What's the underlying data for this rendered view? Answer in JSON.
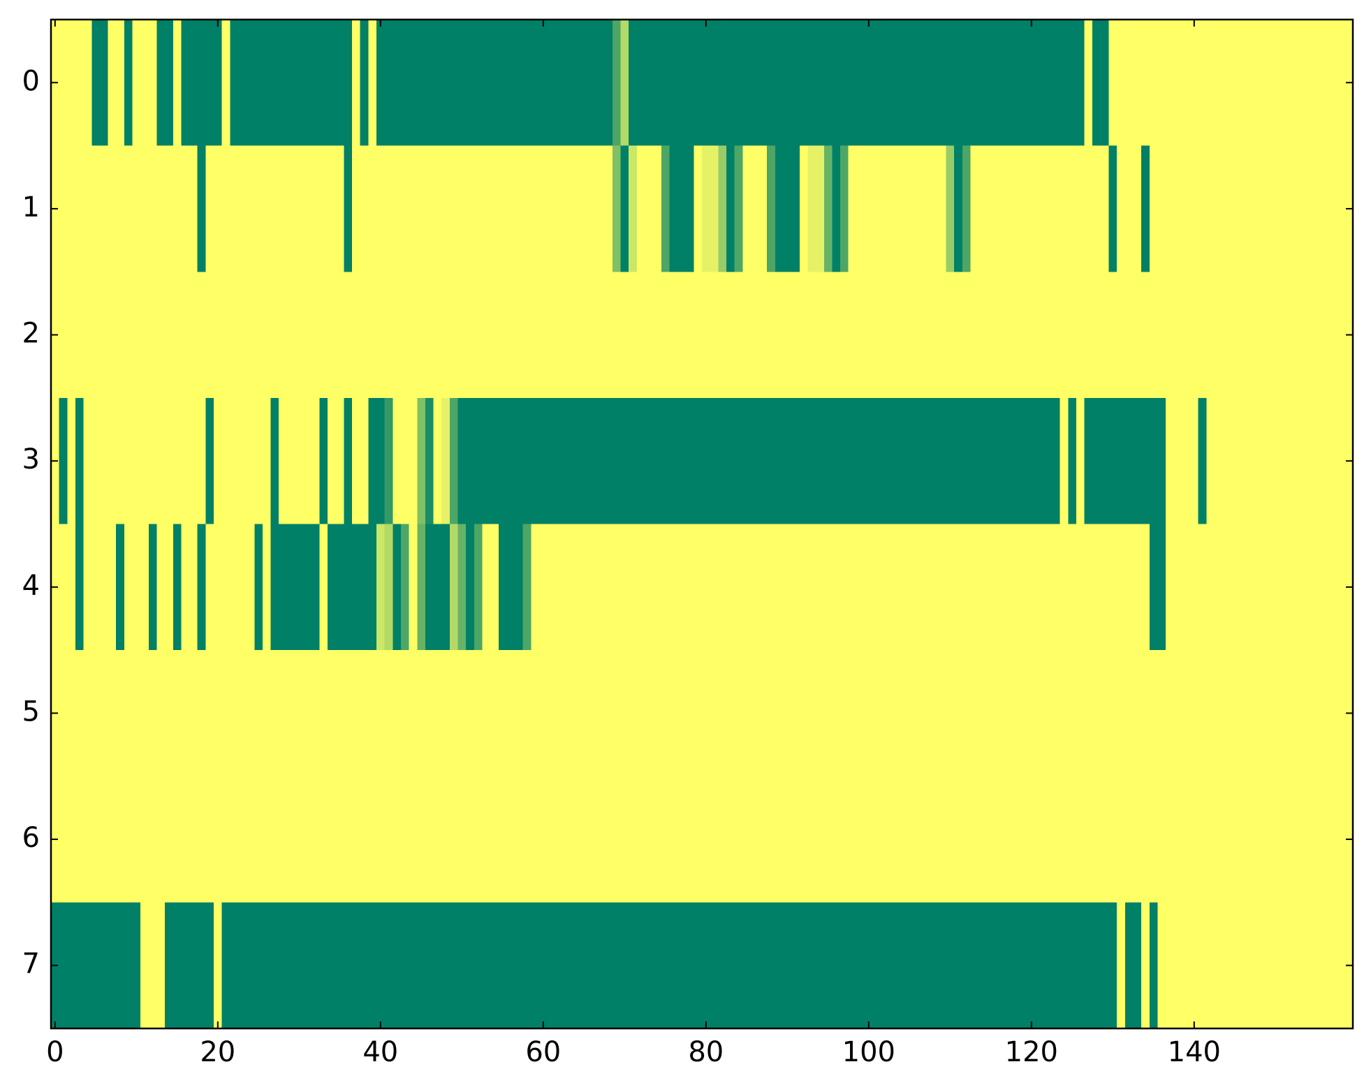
{
  "chart_data": {
    "type": "heatmap",
    "colormap": {
      "low": "#008066",
      "high": "#ffff66"
    },
    "xlim": [
      -0.5,
      159.5
    ],
    "ylim": [
      7.5,
      -0.5
    ],
    "xticks": [
      0,
      20,
      40,
      60,
      80,
      100,
      120,
      140
    ],
    "yticks": [
      0,
      1,
      2,
      3,
      4,
      5,
      6,
      7
    ],
    "values": [
      [
        1,
        1,
        1,
        1,
        1,
        0,
        0,
        1,
        1,
        0,
        1,
        1,
        1,
        0,
        0,
        1,
        0,
        0,
        0,
        0,
        0,
        1,
        0,
        0,
        0,
        0,
        0,
        0,
        0,
        0,
        0,
        0,
        0,
        0,
        0,
        0,
        0,
        1,
        0,
        1,
        0,
        0,
        0,
        0,
        0,
        0,
        0,
        0,
        0,
        0,
        0,
        0,
        0,
        0,
        0,
        0,
        0,
        0,
        0,
        0,
        0,
        0,
        0,
        0,
        0,
        0,
        0,
        0,
        0,
        0.3,
        0.7,
        0,
        0,
        0,
        0,
        0,
        0,
        0,
        0,
        0,
        0,
        0,
        0,
        0,
        0,
        0,
        0,
        0,
        0,
        0,
        0,
        0,
        0,
        0,
        0,
        0,
        0,
        0,
        0,
        0,
        0,
        0,
        0,
        0,
        0,
        0,
        0,
        0,
        0,
        0,
        0,
        0,
        0,
        0,
        0,
        0,
        0,
        0,
        0,
        0,
        0,
        0,
        0,
        0,
        0,
        0,
        0,
        1,
        0,
        0,
        1,
        1,
        1,
        1,
        1,
        1,
        1,
        1,
        1,
        1,
        1,
        1,
        1,
        1,
        1,
        1,
        1,
        1,
        1,
        1,
        1,
        1,
        1,
        1,
        1,
        1,
        1,
        1,
        1,
        1
      ],
      [
        1,
        1,
        1,
        1,
        1,
        1,
        1,
        1,
        1,
        1,
        1,
        1,
        1,
        1,
        1,
        1,
        1,
        1,
        0,
        1,
        1,
        1,
        1,
        1,
        1,
        1,
        1,
        1,
        1,
        1,
        1,
        1,
        1,
        1,
        1,
        1,
        0,
        1,
        1,
        1,
        1,
        1,
        1,
        1,
        1,
        1,
        1,
        1,
        1,
        1,
        1,
        1,
        1,
        1,
        1,
        1,
        1,
        1,
        1,
        1,
        1,
        1,
        1,
        1,
        1,
        1,
        1,
        1,
        1,
        0.5,
        0,
        0.8,
        1,
        1,
        1,
        0.3,
        0,
        0,
        0,
        1,
        0.9,
        0.9,
        0.6,
        0,
        0.3,
        1,
        1,
        1,
        0.3,
        0,
        0,
        0,
        1,
        0.9,
        0.9,
        0.4,
        0,
        0.3,
        1,
        1,
        1,
        1,
        1,
        1,
        1,
        1,
        1,
        1,
        1,
        1,
        0.6,
        0,
        0.3,
        1,
        1,
        1,
        1,
        1,
        1,
        1,
        1,
        1,
        1,
        1,
        1,
        1,
        1,
        1,
        1,
        1,
        0,
        1,
        1,
        1,
        0,
        1,
        1,
        1,
        1,
        1,
        1,
        1,
        1,
        1,
        1,
        1,
        1,
        1,
        1,
        1,
        1,
        1,
        1,
        1,
        1,
        1,
        1,
        1,
        1,
        1
      ],
      [
        1,
        1,
        1,
        1,
        1,
        1,
        1,
        1,
        1,
        1,
        1,
        1,
        1,
        1,
        1,
        1,
        1,
        1,
        1,
        1,
        1,
        1,
        1,
        1,
        1,
        1,
        1,
        1,
        1,
        1,
        1,
        1,
        1,
        1,
        1,
        1,
        1,
        1,
        1,
        1,
        1,
        1,
        1,
        1,
        1,
        1,
        1,
        1,
        1,
        1,
        1,
        1,
        1,
        1,
        1,
        1,
        1,
        1,
        1,
        1,
        1,
        1,
        1,
        1,
        1,
        1,
        1,
        1,
        1,
        1,
        1,
        1,
        1,
        1,
        1,
        1,
        1,
        1,
        1,
        1,
        1,
        1,
        1,
        1,
        1,
        1,
        1,
        1,
        1,
        1,
        1,
        1,
        1,
        1,
        1,
        1,
        1,
        1,
        1,
        1,
        1,
        1,
        1,
        1,
        1,
        1,
        1,
        1,
        1,
        1,
        1,
        1,
        1,
        1,
        1,
        1,
        1,
        1,
        1,
        1,
        1,
        1,
        1,
        1,
        1,
        1,
        1,
        1,
        1,
        1,
        1,
        1,
        1,
        1,
        1,
        1,
        1,
        1,
        1,
        1,
        1,
        1,
        1,
        1,
        1,
        1,
        1,
        1,
        1,
        1,
        1,
        1,
        1,
        1,
        1,
        1,
        1,
        1,
        1,
        1
      ],
      [
        1,
        0,
        1,
        0,
        1,
        1,
        1,
        1,
        1,
        1,
        1,
        1,
        1,
        1,
        1,
        1,
        1,
        1,
        1,
        0,
        1,
        1,
        1,
        1,
        1,
        1,
        1,
        0,
        1,
        1,
        1,
        1,
        1,
        0,
        1,
        1,
        0,
        1,
        1,
        0,
        0,
        0.2,
        1,
        1,
        1,
        0.5,
        0.1,
        1,
        0.9,
        0.3,
        0,
        0,
        0,
        0,
        0,
        0,
        0,
        0,
        0,
        0,
        0,
        0,
        0,
        0,
        0,
        0,
        0,
        0,
        0,
        0,
        0,
        0,
        0,
        0,
        0,
        0,
        0,
        0,
        0,
        0,
        0,
        0,
        0,
        0,
        0,
        0,
        0,
        0,
        0,
        0,
        0,
        0,
        0,
        0,
        0,
        0,
        0,
        0,
        0,
        0,
        0,
        0,
        0,
        0,
        0,
        0,
        0,
        0,
        0,
        0,
        0,
        0,
        0,
        0,
        0,
        0,
        0,
        0,
        0,
        0,
        0,
        0,
        0,
        0,
        1,
        0,
        1,
        0,
        0,
        0,
        0,
        0,
        0,
        0,
        0,
        0,
        0,
        1,
        1,
        1,
        1,
        0,
        1,
        1,
        1,
        1,
        1,
        1,
        1,
        1,
        1,
        1,
        1,
        1,
        1,
        1,
        1,
        1,
        1,
        1
      ],
      [
        1,
        1,
        1,
        0,
        1,
        1,
        1,
        1,
        0,
        1,
        1,
        1,
        0,
        1,
        1,
        0,
        1,
        1,
        0,
        1,
        1,
        1,
        1,
        1,
        1,
        0,
        1,
        0,
        0,
        0,
        0,
        0,
        0,
        1,
        0,
        0,
        0,
        0,
        0,
        0,
        0.8,
        0.7,
        0,
        0.3,
        1,
        0.4,
        0,
        0,
        0,
        0.7,
        0.4,
        0,
        0.3,
        1,
        1,
        0,
        0,
        0,
        0.3,
        1,
        1,
        1,
        1,
        1,
        1,
        1,
        1,
        1,
        1,
        1,
        1,
        1,
        1,
        1,
        1,
        1,
        1,
        1,
        1,
        1,
        1,
        1,
        1,
        1,
        1,
        1,
        1,
        1,
        1,
        1,
        1,
        1,
        1,
        1,
        1,
        1,
        1,
        1,
        1,
        1,
        1,
        1,
        1,
        1,
        1,
        1,
        1,
        1,
        1,
        1,
        1,
        1,
        1,
        1,
        1,
        1,
        1,
        1,
        1,
        1,
        1,
        1,
        1,
        1,
        1,
        1,
        1,
        1,
        1,
        1,
        1,
        1,
        1,
        1,
        1,
        0,
        0,
        1,
        1,
        1,
        1,
        1,
        1,
        1,
        1,
        1,
        1,
        1,
        1,
        1,
        1,
        1,
        1,
        1,
        1,
        1,
        1,
        1,
        1,
        1
      ],
      [
        1,
        1,
        1,
        1,
        1,
        1,
        1,
        1,
        1,
        1,
        1,
        1,
        1,
        1,
        1,
        1,
        1,
        1,
        1,
        1,
        1,
        1,
        1,
        1,
        1,
        1,
        1,
        1,
        1,
        1,
        1,
        1,
        1,
        1,
        1,
        1,
        1,
        1,
        1,
        1,
        1,
        1,
        1,
        1,
        1,
        1,
        1,
        1,
        1,
        1,
        1,
        1,
        1,
        1,
        1,
        1,
        1,
        1,
        1,
        1,
        1,
        1,
        1,
        1,
        1,
        1,
        1,
        1,
        1,
        1,
        1,
        1,
        1,
        1,
        1,
        1,
        1,
        1,
        1,
        1,
        1,
        1,
        1,
        1,
        1,
        1,
        1,
        1,
        1,
        1,
        1,
        1,
        1,
        1,
        1,
        1,
        1,
        1,
        1,
        1,
        1,
        1,
        1,
        1,
        1,
        1,
        1,
        1,
        1,
        1,
        1,
        1,
        1,
        1,
        1,
        1,
        1,
        1,
        1,
        1,
        1,
        1,
        1,
        1,
        1,
        1,
        1,
        1,
        1,
        1,
        1,
        1,
        1,
        1,
        1,
        1,
        1,
        1,
        1,
        1,
        1,
        1,
        1,
        1,
        1,
        1,
        1,
        1,
        1,
        1,
        1,
        1,
        1,
        1,
        1,
        1,
        1,
        1,
        1,
        1
      ],
      [
        1,
        1,
        1,
        1,
        1,
        1,
        1,
        1,
        1,
        1,
        1,
        1,
        1,
        1,
        1,
        1,
        1,
        1,
        1,
        1,
        1,
        1,
        1,
        1,
        1,
        1,
        1,
        1,
        1,
        1,
        1,
        1,
        1,
        1,
        1,
        1,
        1,
        1,
        1,
        1,
        1,
        1,
        1,
        1,
        1,
        1,
        1,
        1,
        1,
        1,
        1,
        1,
        1,
        1,
        1,
        1,
        1,
        1,
        1,
        1,
        1,
        1,
        1,
        1,
        1,
        1,
        1,
        1,
        1,
        1,
        1,
        1,
        1,
        1,
        1,
        1,
        1,
        1,
        1,
        1,
        1,
        1,
        1,
        1,
        1,
        1,
        1,
        1,
        1,
        1,
        1,
        1,
        1,
        1,
        1,
        1,
        1,
        1,
        1,
        1,
        1,
        1,
        1,
        1,
        1,
        1,
        1,
        1,
        1,
        1,
        1,
        1,
        1,
        1,
        1,
        1,
        1,
        1,
        1,
        1,
        1,
        1,
        1,
        1,
        1,
        1,
        1,
        1,
        1,
        1,
        1,
        1,
        1,
        1,
        1,
        1,
        1,
        1,
        1,
        1,
        1,
        1,
        1,
        1,
        1,
        1,
        1,
        1,
        1,
        1,
        1,
        1,
        1,
        1,
        1,
        1,
        1,
        1,
        1,
        1
      ],
      [
        0,
        0,
        0,
        0,
        0,
        0,
        0,
        0,
        0,
        0,
        0,
        1,
        1,
        1,
        0,
        0,
        0,
        0,
        0,
        0,
        1,
        0,
        0,
        0,
        0,
        0,
        0,
        0,
        0,
        0,
        0,
        0,
        0,
        0,
        0,
        0,
        0,
        0,
        0,
        0,
        0,
        0,
        0,
        0,
        0,
        0,
        0,
        0,
        0,
        0,
        0,
        0,
        0,
        0,
        0,
        0,
        0,
        0,
        0,
        0,
        0,
        0,
        0,
        0,
        0,
        0,
        0,
        0,
        0,
        0,
        0,
        0,
        0,
        0,
        0,
        0,
        0,
        0,
        0,
        0,
        0,
        0,
        0,
        0,
        0,
        0,
        0,
        0,
        0,
        0,
        0,
        0,
        0,
        0,
        0,
        0,
        0,
        0,
        0,
        0,
        0,
        0,
        0,
        0,
        0,
        0,
        0,
        0,
        0,
        0,
        0,
        0,
        0,
        0,
        0,
        0,
        0,
        0,
        0,
        0,
        0,
        0,
        0,
        0,
        0,
        0,
        0,
        0,
        0,
        0,
        0,
        1,
        0,
        0,
        1,
        0,
        1,
        1,
        1,
        1,
        1,
        1,
        1,
        1,
        1,
        1,
        1,
        1,
        1,
        1,
        1,
        1,
        1,
        1,
        1,
        1,
        1,
        1,
        1,
        1
      ]
    ]
  }
}
